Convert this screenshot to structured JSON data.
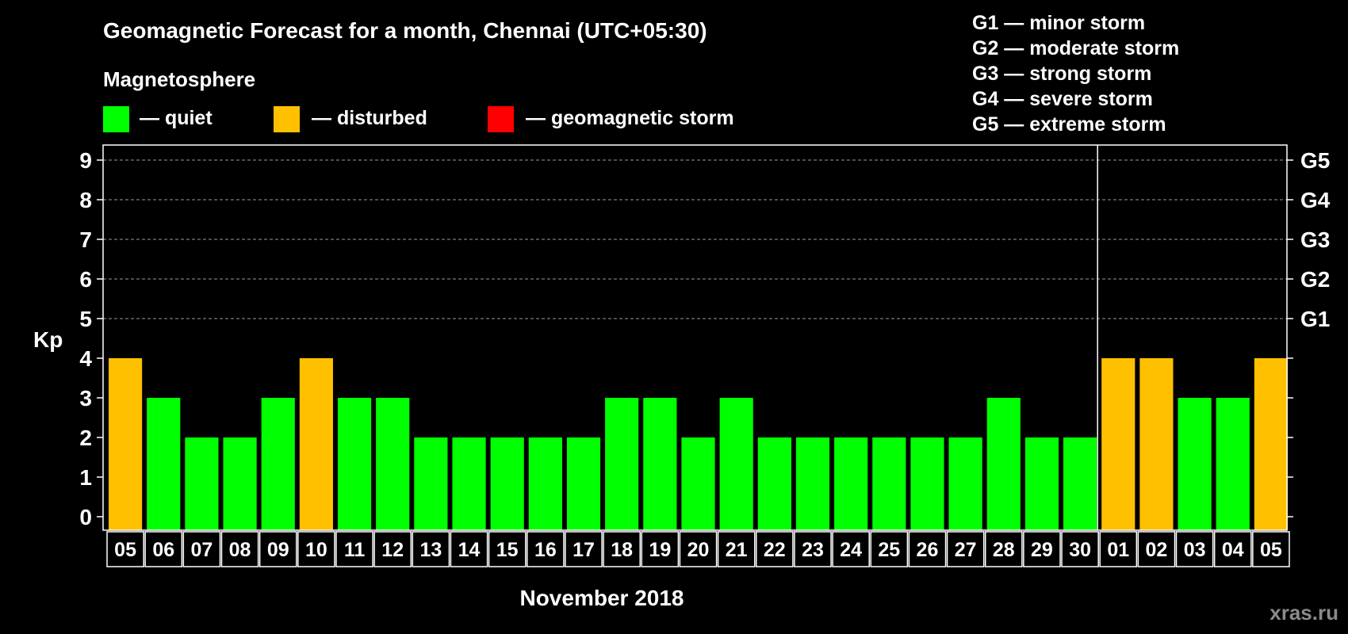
{
  "title": "Geomagnetic Forecast for a month, Chennai (UTC+05:30)",
  "legend": {
    "title": "Magnetosphere",
    "items": [
      {
        "label": "— quiet",
        "color": "#00ff00"
      },
      {
        "label": "— disturbed",
        "color": "#ffc000"
      },
      {
        "label": "— geomagnetic storm",
        "color": "#ff0000"
      }
    ]
  },
  "storm_scale": [
    "G1 — minor storm",
    "G2 — moderate storm",
    "G3 — strong storm",
    "G4 — severe storm",
    "G5 — extreme storm"
  ],
  "watermark": "xras.ru",
  "chart_data": {
    "type": "bar",
    "title": "Geomagnetic Forecast for a month, Chennai (UTC+05:30)",
    "xlabel": "November 2018",
    "ylabel": "Kp",
    "ylim": [
      0,
      9
    ],
    "y_ticks": [
      "0",
      "1",
      "2",
      "3",
      "4",
      "5",
      "6",
      "7",
      "8",
      "9"
    ],
    "right_ticks": [
      {
        "value": 5,
        "label": "G1"
      },
      {
        "value": 6,
        "label": "G2"
      },
      {
        "value": 7,
        "label": "G3"
      },
      {
        "value": 8,
        "label": "G4"
      },
      {
        "value": 9,
        "label": "G5"
      }
    ],
    "grid": "dashed horizontal at Kp 5–9",
    "month_separator_after": "30",
    "categories": [
      "05",
      "06",
      "07",
      "08",
      "09",
      "10",
      "11",
      "12",
      "13",
      "14",
      "15",
      "16",
      "17",
      "18",
      "19",
      "20",
      "21",
      "22",
      "23",
      "24",
      "25",
      "26",
      "27",
      "28",
      "29",
      "30",
      "01",
      "02",
      "03",
      "04",
      "05"
    ],
    "values": [
      4,
      3,
      2,
      2,
      3,
      4,
      3,
      3,
      2,
      2,
      2,
      2,
      2,
      3,
      3,
      2,
      3,
      2,
      2,
      2,
      2,
      2,
      2,
      3,
      2,
      2,
      4,
      4,
      3,
      3,
      4
    ],
    "colors": {
      "quiet": "#00ff00",
      "disturbed": "#ffc000",
      "storm": "#ff0000"
    }
  }
}
